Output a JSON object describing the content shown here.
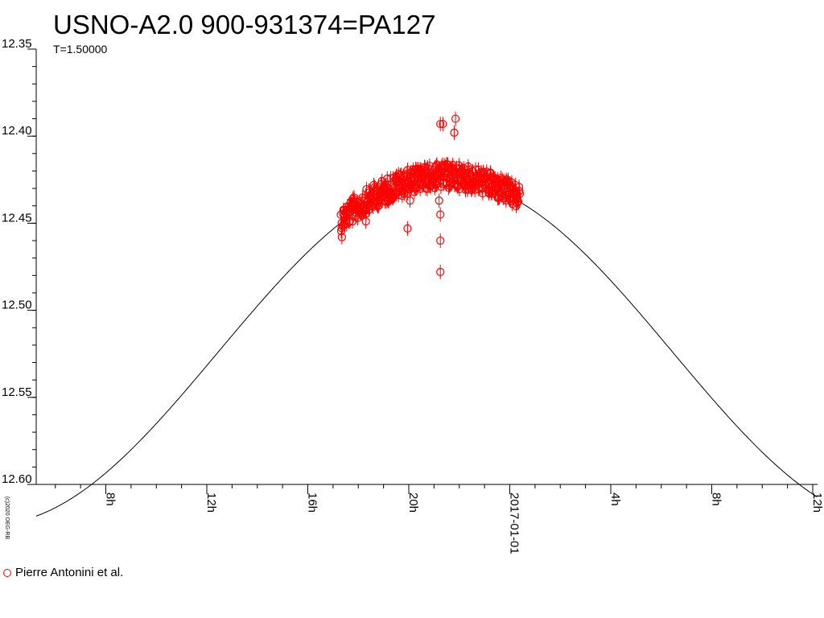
{
  "chart_data": {
    "type": "scatter",
    "title": "USNO-A2.0 900-931374=PA127",
    "subtitle": "T=1.50000",
    "copyright": "(c)2020 OEG-RB",
    "ylim": [
      12.6,
      12.35
    ],
    "y_inverted": true,
    "xlim": [
      5.0,
      36.2
    ],
    "xlim_note": "hours relative to 2016-12-31 00:00",
    "y_ticks": [
      "12.35",
      "12.40",
      "12.45",
      "12.50",
      "12.55",
      "12.60"
    ],
    "x_major_ticks": [
      {
        "x": 8,
        "label": "8h"
      },
      {
        "x": 12,
        "label": "12h"
      },
      {
        "x": 16,
        "label": "16h"
      },
      {
        "x": 20,
        "label": "20h"
      },
      {
        "x": 24,
        "label": "2017-01-01"
      },
      {
        "x": 28,
        "label": "4h"
      },
      {
        "x": 32,
        "label": "8h"
      },
      {
        "x": 36,
        "label": "12h"
      }
    ],
    "model_curve": {
      "center_x": 21.45,
      "mean": 12.524,
      "amplitude": 0.099,
      "period_h": 36.0
    },
    "legend": [
      {
        "name": "Pierre Antonini et al.",
        "color": "#ff0000"
      }
    ],
    "series": [
      {
        "name": "Pierre Antonini et al.",
        "color": "#ff0000",
        "x_range": [
          17.3,
          24.4
        ],
        "points_note": "dense photometric points following the model near the maximum",
        "outliers": [
          [
            17.35,
            12.458
          ],
          [
            19.95,
            12.453
          ],
          [
            21.2,
            12.437
          ],
          [
            21.25,
            12.445
          ],
          [
            21.25,
            12.46
          ],
          [
            21.25,
            12.478
          ],
          [
            21.25,
            12.393
          ],
          [
            21.35,
            12.393
          ],
          [
            21.8,
            12.398
          ],
          [
            21.85,
            12.39
          ],
          [
            20.05,
            12.437
          ],
          [
            18.3,
            12.449
          ]
        ]
      }
    ]
  }
}
